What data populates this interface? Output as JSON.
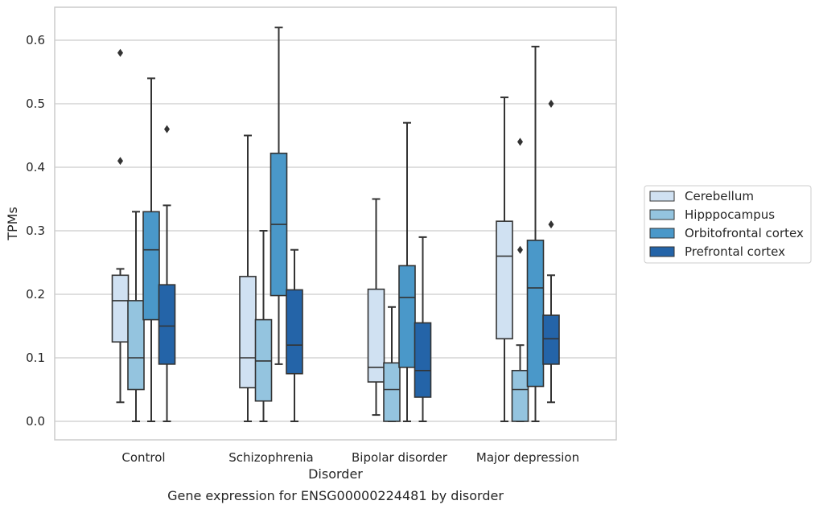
{
  "chart_data": {
    "type": "box",
    "caption": "Gene expression for ENSG00000224481 by disorder",
    "xlabel": "Disorder",
    "ylabel": "TPMs",
    "ylim": [
      -0.03,
      0.655
    ],
    "yticks": [
      0.0,
      0.1,
      0.2,
      0.3,
      0.4,
      0.5,
      0.6
    ],
    "ytick_labels": [
      "0.0",
      "0.1",
      "0.2",
      "0.3",
      "0.4",
      "0.5",
      "0.6"
    ],
    "grid": "horizontal",
    "legend_position": "right",
    "categories": [
      "Control",
      "Schizophrenia",
      "Bipolar disorder",
      "Major depression"
    ],
    "series": [
      {
        "name": "Cerebellum",
        "color": "#d0e1f2",
        "boxes": [
          {
            "whislo": 0.03,
            "q1": 0.125,
            "median": 0.19,
            "q3": 0.23,
            "whishi": 0.24,
            "fliers": [
              0.41,
              0.58
            ]
          },
          {
            "whislo": 0.0,
            "q1": 0.053,
            "median": 0.1,
            "q3": 0.228,
            "whishi": 0.45,
            "fliers": []
          },
          {
            "whislo": 0.01,
            "q1": 0.062,
            "median": 0.085,
            "q3": 0.208,
            "whishi": 0.35,
            "fliers": []
          },
          {
            "whislo": 0.0,
            "q1": 0.13,
            "median": 0.26,
            "q3": 0.315,
            "whishi": 0.51,
            "fliers": []
          }
        ]
      },
      {
        "name": "Hipppocampus",
        "color": "#94c4df",
        "boxes": [
          {
            "whislo": 0.0,
            "q1": 0.05,
            "median": 0.1,
            "q3": 0.19,
            "whishi": 0.33,
            "fliers": []
          },
          {
            "whislo": 0.0,
            "q1": 0.032,
            "median": 0.095,
            "q3": 0.16,
            "whishi": 0.3,
            "fliers": []
          },
          {
            "whislo": 0.0,
            "q1": 0.0,
            "median": 0.05,
            "q3": 0.092,
            "whishi": 0.18,
            "fliers": []
          },
          {
            "whislo": 0.0,
            "q1": 0.0,
            "median": 0.05,
            "q3": 0.08,
            "whishi": 0.12,
            "fliers": [
              0.27,
              0.44
            ]
          }
        ]
      },
      {
        "name": "Orbitofrontal cortex",
        "color": "#4a98c9",
        "boxes": [
          {
            "whislo": 0.0,
            "q1": 0.16,
            "median": 0.27,
            "q3": 0.33,
            "whishi": 0.54,
            "fliers": []
          },
          {
            "whislo": 0.09,
            "q1": 0.198,
            "median": 0.31,
            "q3": 0.422,
            "whishi": 0.62,
            "fliers": []
          },
          {
            "whislo": 0.0,
            "q1": 0.085,
            "median": 0.195,
            "q3": 0.245,
            "whishi": 0.47,
            "fliers": []
          },
          {
            "whislo": 0.0,
            "q1": 0.055,
            "median": 0.21,
            "q3": 0.285,
            "whishi": 0.59,
            "fliers": []
          }
        ]
      },
      {
        "name": "Prefrontal cortex",
        "color": "#2464a8",
        "boxes": [
          {
            "whislo": 0.0,
            "q1": 0.09,
            "median": 0.15,
            "q3": 0.215,
            "whishi": 0.34,
            "fliers": [
              0.46
            ]
          },
          {
            "whislo": 0.0,
            "q1": 0.075,
            "median": 0.12,
            "q3": 0.207,
            "whishi": 0.27,
            "fliers": []
          },
          {
            "whislo": 0.0,
            "q1": 0.038,
            "median": 0.08,
            "q3": 0.155,
            "whishi": 0.29,
            "fliers": []
          },
          {
            "whislo": 0.03,
            "q1": 0.09,
            "median": 0.13,
            "q3": 0.167,
            "whishi": 0.23,
            "fliers": [
              0.31,
              0.5
            ]
          }
        ]
      }
    ]
  }
}
